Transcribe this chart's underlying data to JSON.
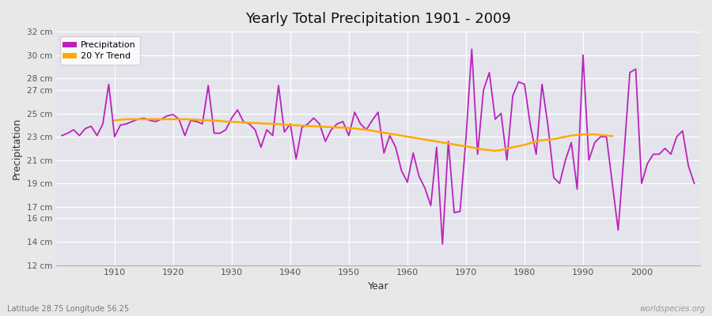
{
  "title": "Yearly Total Precipitation 1901 - 2009",
  "xlabel": "Year",
  "ylabel": "Precipitation",
  "subtitle_left": "Latitude 28.75 Longitude 56.25",
  "subtitle_right": "worldspecies.org",
  "ylim": [
    12,
    32
  ],
  "ytick_vals": [
    12,
    14,
    16,
    17,
    19,
    21,
    23,
    25,
    27,
    28,
    30,
    32
  ],
  "ytick_labels": [
    "12 cm",
    "14 cm",
    "16 cm",
    "17 cm",
    "19 cm",
    "21 cm",
    "23 cm",
    "25 cm",
    "27 cm",
    "28 cm",
    "30 cm",
    "32 cm"
  ],
  "xtick_vals": [
    1910,
    1920,
    1930,
    1940,
    1950,
    1960,
    1970,
    1980,
    1990,
    2000
  ],
  "xlim": [
    1900,
    2010
  ],
  "bg_color": "#e8e8e8",
  "plot_bg_color": "#e4e4ec",
  "grid_color": "#ffffff",
  "precip_color": "#bb22bb",
  "trend_color": "#ffaa00",
  "legend_labels": [
    "Precipitation",
    "20 Yr Trend"
  ],
  "years": [
    1901,
    1902,
    1903,
    1904,
    1905,
    1906,
    1907,
    1908,
    1909,
    1910,
    1911,
    1912,
    1913,
    1914,
    1915,
    1916,
    1917,
    1918,
    1919,
    1920,
    1921,
    1922,
    1923,
    1924,
    1925,
    1926,
    1927,
    1928,
    1929,
    1930,
    1931,
    1932,
    1933,
    1934,
    1935,
    1936,
    1937,
    1938,
    1939,
    1940,
    1941,
    1942,
    1943,
    1944,
    1945,
    1946,
    1947,
    1948,
    1949,
    1950,
    1951,
    1952,
    1953,
    1954,
    1955,
    1956,
    1957,
    1958,
    1959,
    1960,
    1961,
    1962,
    1963,
    1964,
    1965,
    1966,
    1967,
    1968,
    1969,
    1970,
    1971,
    1972,
    1973,
    1974,
    1975,
    1976,
    1977,
    1978,
    1979,
    1980,
    1981,
    1982,
    1983,
    1984,
    1985,
    1986,
    1987,
    1988,
    1989,
    1990,
    1991,
    1992,
    1993,
    1994,
    1995,
    1996,
    1997,
    1998,
    1999,
    2000,
    2001,
    2002,
    2003,
    2004,
    2005,
    2006,
    2007,
    2008,
    2009
  ],
  "precip": [
    23.1,
    23.3,
    23.6,
    23.1,
    23.7,
    23.9,
    23.1,
    24.1,
    27.5,
    23.0,
    24.0,
    24.1,
    24.3,
    24.5,
    24.6,
    24.4,
    24.3,
    24.5,
    24.8,
    24.9,
    24.5,
    23.1,
    24.4,
    24.3,
    24.1,
    27.4,
    23.3,
    23.3,
    23.6,
    24.6,
    25.3,
    24.3,
    24.1,
    23.6,
    22.1,
    23.6,
    23.1,
    27.4,
    23.4,
    24.1,
    21.1,
    23.8,
    24.1,
    24.6,
    24.1,
    22.6,
    23.6,
    24.1,
    24.3,
    23.1,
    25.1,
    24.1,
    23.6,
    24.4,
    25.1,
    21.6,
    23.1,
    22.1,
    20.1,
    19.1,
    21.6,
    19.6,
    18.6,
    17.1,
    22.1,
    13.8,
    22.6,
    16.5,
    16.6,
    22.8,
    30.5,
    21.5,
    27.0,
    28.5,
    24.5,
    25.0,
    21.0,
    26.5,
    27.7,
    27.5,
    24.0,
    21.5,
    27.5,
    24.0,
    19.5,
    19.0,
    21.0,
    22.5,
    18.5,
    30.0,
    21.0,
    22.5,
    23.0,
    23.0,
    19.0,
    15.0,
    21.5,
    28.5,
    28.8,
    19.0,
    20.7,
    21.5,
    21.5,
    22.0,
    21.5,
    23.0,
    23.5,
    20.5,
    19.0
  ],
  "trend_years": [
    1910,
    1911,
    1912,
    1913,
    1914,
    1915,
    1916,
    1917,
    1918,
    1919,
    1920,
    1921,
    1922,
    1923,
    1924,
    1925,
    1926,
    1927,
    1928,
    1929,
    1930,
    1931,
    1932,
    1933,
    1934,
    1935,
    1936,
    1937,
    1938,
    1939,
    1940,
    1941,
    1942,
    1943,
    1944,
    1945,
    1946,
    1947,
    1948,
    1949,
    1950,
    1951,
    1952,
    1953,
    1972,
    1973,
    1974,
    1975,
    1976,
    1977,
    1978,
    1979,
    1980,
    1981,
    1982,
    1983,
    1984,
    1985,
    1986,
    1987,
    1988,
    1989,
    1990,
    1991,
    1992,
    1993,
    1994,
    1995
  ],
  "trend": [
    24.4,
    24.45,
    24.5,
    24.5,
    24.5,
    24.5,
    24.5,
    24.5,
    24.5,
    24.5,
    24.5,
    24.5,
    24.5,
    24.48,
    24.45,
    24.42,
    24.4,
    24.38,
    24.35,
    24.3,
    24.28,
    24.25,
    24.22,
    24.2,
    24.18,
    24.15,
    24.12,
    24.1,
    24.08,
    24.05,
    24.0,
    23.98,
    23.95,
    23.92,
    23.9,
    23.88,
    23.85,
    23.82,
    23.8,
    23.78,
    23.75,
    23.7,
    23.65,
    23.6,
    22.0,
    21.9,
    21.85,
    21.8,
    21.85,
    22.0,
    22.1,
    22.2,
    22.3,
    22.45,
    22.6,
    22.7,
    22.75,
    22.8,
    22.9,
    23.0,
    23.1,
    23.15,
    23.2,
    23.2,
    23.2,
    23.15,
    23.1,
    23.05
  ]
}
